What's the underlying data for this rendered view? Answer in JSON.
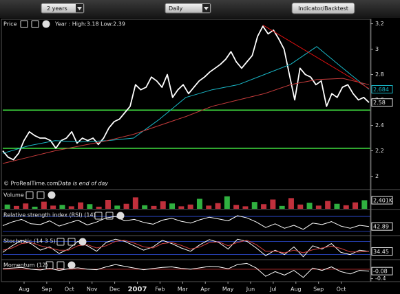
{
  "toolbar": {
    "period": "2 years",
    "interval": "Daily",
    "button": "Indicator/Backtest"
  },
  "x_axis": {
    "labels": [
      "Aug",
      "Sep",
      "Oct",
      "Nov",
      "Dec",
      "2007",
      "Feb",
      "Mar",
      "Apr",
      "May",
      "Jun",
      "Jul",
      "Aug",
      "Sep",
      "Oct"
    ]
  },
  "chart_data": [
    {
      "type": "line",
      "title": "Price",
      "subtitle": "Year : High:3.18 Low:2.39",
      "source": "© ProRealTime.com",
      "note": "Data is end of day",
      "ylim": [
        1.9,
        3.23
      ],
      "yticks": [
        2,
        2.2,
        2.4,
        2.6,
        2.8,
        3,
        3.2
      ],
      "series": [
        {
          "color": "#ffffff",
          "values": [
            2.2,
            2.15,
            2.13,
            2.18,
            2.28,
            2.35,
            2.32,
            2.3,
            2.3,
            2.28,
            2.22,
            2.28,
            2.3,
            2.35,
            2.26,
            2.3,
            2.28,
            2.3,
            2.25,
            2.3,
            2.38,
            2.43,
            2.45,
            2.5,
            2.55,
            2.72,
            2.68,
            2.7,
            2.78,
            2.75,
            2.7,
            2.8,
            2.62,
            2.68,
            2.72,
            2.65,
            2.7,
            2.75,
            2.78,
            2.82,
            2.85,
            2.88,
            2.92,
            2.98,
            2.9,
            2.85,
            2.9,
            2.95,
            3.1,
            3.18,
            3.12,
            3.15,
            3.08,
            3.0,
            2.8,
            2.6,
            2.85,
            2.8,
            2.78,
            2.72,
            2.75,
            2.55,
            2.65,
            2.62,
            2.7,
            2.72,
            2.65,
            2.6,
            2.62,
            2.58
          ]
        },
        {
          "color": "#19b8c8",
          "values": [
            2.18,
            2.24,
            2.28,
            2.27,
            2.28,
            2.3,
            2.45,
            2.62,
            2.68,
            2.72,
            2.8,
            2.88,
            3.02,
            2.85,
            2.684
          ]
        },
        {
          "color": "#c83c3c",
          "values": [
            2.1,
            2.15,
            2.2,
            2.24,
            2.28,
            2.33,
            2.4,
            2.47,
            2.55,
            2.6,
            2.65,
            2.72,
            2.76,
            2.77,
            2.72
          ]
        },
        {
          "color": "#e01010",
          "x": [
            49,
            69
          ],
          "values": [
            3.19,
            2.69
          ]
        }
      ],
      "hlines": [
        2.52,
        2.22
      ],
      "hline_color": "#40e040",
      "last_labels": [
        {
          "value": 2.684,
          "label": "2.684",
          "color": "#19b8c8"
        },
        {
          "value": 2.58,
          "label": "2.58",
          "color": "#e8e8e8"
        }
      ]
    },
    {
      "type": "bar",
      "title": "Volume",
      "ylim": [
        0,
        5000
      ],
      "color": "#c0303c",
      "values": [
        1200,
        800,
        1500,
        600,
        2000,
        900,
        1100,
        700,
        1800,
        1300,
        600,
        2500,
        900,
        1400,
        3200,
        1000,
        800,
        2100,
        1500,
        700,
        1200,
        2800,
        900,
        1600,
        3500,
        1100,
        700,
        1900,
        1300,
        2600,
        800,
        3000,
        1200,
        1700,
        900,
        2200,
        1400,
        1000,
        1800,
        2401
      ],
      "last_labels": [
        {
          "value": 2401,
          "label": "2,401K",
          "color": "#e8e8e8"
        }
      ]
    },
    {
      "type": "line",
      "title": "Relative strength index (RSI) (14)",
      "ylim": [
        20,
        85
      ],
      "series": [
        {
          "color": "#ffffff",
          "values": [
            45,
            55,
            62,
            50,
            48,
            58,
            44,
            52,
            60,
            47,
            55,
            66,
            70,
            58,
            62,
            54,
            49,
            60,
            65,
            57,
            52,
            61,
            68,
            63,
            58,
            72,
            66,
            55,
            40,
            50,
            38,
            46,
            35,
            52,
            48,
            56,
            44,
            38,
            46,
            42.89
          ]
        }
      ],
      "hlines": [
        70,
        30
      ],
      "hline_color": "#3050e0",
      "last_labels": [
        {
          "value": 42.89,
          "label": "42.89",
          "color": "#e8e8e8"
        }
      ]
    },
    {
      "type": "line",
      "title": "Stochastic (14 3 5)",
      "ylim": [
        0,
        100
      ],
      "series": [
        {
          "color": "#ffffff",
          "values": [
            30,
            60,
            85,
            70,
            40,
            55,
            25,
            45,
            80,
            60,
            35,
            75,
            90,
            80,
            60,
            40,
            55,
            85,
            70,
            50,
            35,
            65,
            88,
            75,
            45,
            90,
            80,
            50,
            15,
            40,
            20,
            55,
            10,
            60,
            45,
            70,
            30,
            20,
            40,
            34.45
          ]
        },
        {
          "color": "#d04040",
          "values": [
            40,
            50,
            70,
            75,
            60,
            50,
            40,
            40,
            60,
            65,
            50,
            60,
            80,
            85,
            72,
            55,
            50,
            70,
            75,
            62,
            45,
            55,
            75,
            78,
            60,
            75,
            85,
            65,
            35,
            35,
            28,
            40,
            28,
            42,
            50,
            58,
            48,
            32,
            32,
            35
          ]
        }
      ],
      "hlines": [
        80,
        20
      ],
      "hline_color": "#3050e0",
      "last_labels": [
        {
          "value": 34.45,
          "label": "34.45",
          "color": "#e8e8e8"
        }
      ]
    },
    {
      "type": "line",
      "title": "Momentum (12)",
      "ylim": [
        -0.5,
        0.35
      ],
      "yticks": [
        -0.4
      ],
      "series": [
        {
          "color": "#ffffff",
          "values": [
            0.02,
            0.05,
            0.08,
            0,
            -0.03,
            0.04,
            -0.05,
            0.02,
            0.06,
            0,
            -0.02,
            0.1,
            0.2,
            0.12,
            0.05,
            -0.02,
            0.03,
            0.08,
            0.1,
            0.04,
            0,
            0.06,
            0.12,
            0.1,
            0.02,
            0.2,
            0.25,
            0.05,
            -0.3,
            -0.1,
            -0.25,
            -0.05,
            -0.35,
            0.05,
            -0.05,
            0.1,
            -0.1,
            -0.2,
            -0.05,
            -0.08
          ]
        }
      ],
      "hlines": [
        0
      ],
      "hline_color": "#c03030",
      "last_labels": [
        {
          "value": -0.08,
          "label": "-0.08",
          "color": "#e8e8e8"
        }
      ]
    }
  ]
}
